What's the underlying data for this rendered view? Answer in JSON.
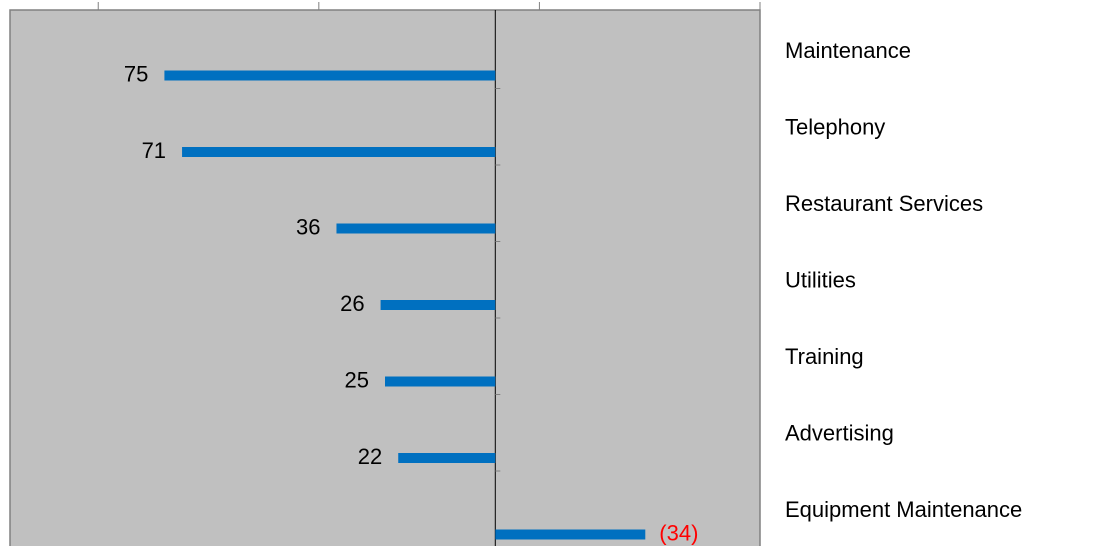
{
  "chart_data": {
    "type": "bar",
    "orientation": "horizontal",
    "categories": [
      "Maintenance",
      "Telephony",
      "Restaurant Services",
      "Utilities",
      "Training",
      "Advertising",
      "Equipment Maintenance"
    ],
    "values": [
      75,
      71,
      36,
      26,
      25,
      22,
      -34
    ],
    "value_labels": [
      "75",
      "71",
      "36",
      "26",
      "25",
      "22",
      "(34)"
    ],
    "color": "#0070c0",
    "negative_label_color": "#ff0000",
    "xlim": [
      110,
      -60
    ],
    "xticks": [
      90,
      40,
      -10,
      -60
    ],
    "grid": false
  }
}
